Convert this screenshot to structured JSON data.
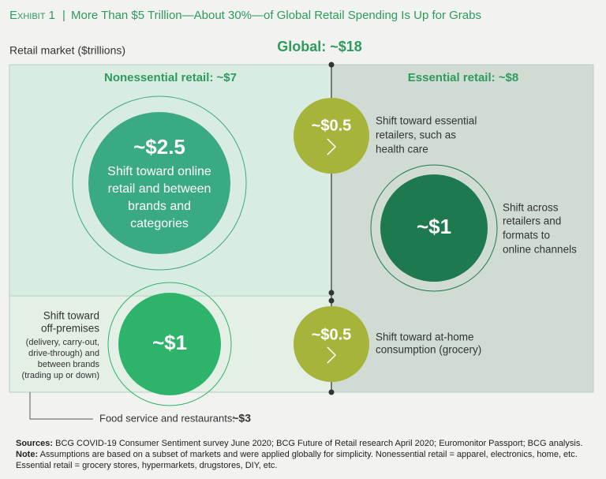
{
  "title": {
    "exhibit": "Exhibit 1",
    "separator": "|",
    "text": "More Than $5 Trillion—About 30%—of Global Retail Spending Is Up for Grabs"
  },
  "axis_label": "Retail market ($trillions)",
  "global": "Global: ~$18",
  "regions": {
    "nonessential": "Nonessential retail: ~$7",
    "essential": "Essential retail: ~$8",
    "food_service": {
      "label": "Food service and restaurants:",
      "value": "~$3"
    }
  },
  "bubbles": [
    {
      "value": "~$2.5",
      "lines": [
        "Shift toward online",
        "retail and between",
        "brands and",
        "categories"
      ]
    },
    {
      "value": "~$0.5",
      "lines": [
        "Shift toward essential",
        "retailers, such as",
        "health care"
      ]
    },
    {
      "value": "~$1",
      "lines": [
        "Shift across",
        "retailers and",
        "formats to",
        "online channels"
      ]
    },
    {
      "value": "~$1",
      "lines": [
        "Shift toward",
        "off-premises"
      ],
      "details": [
        "(delivery, carry-out,",
        "drive-through) and",
        "between brands",
        "(trading up or down)"
      ]
    },
    {
      "value": "~$0.5",
      "lines": [
        "Shift toward at-home",
        "consumption (grocery)"
      ]
    }
  ],
  "footnotes": {
    "sources_label": "Sources:",
    "sources": "BCG COVID-19 Consumer Sentiment survey June 2020; BCG Future of Retail research April 2020; Euromonitor Passport; BCG analysis.",
    "note_label": "Note:",
    "note": "Assumptions are based on a subset of markets and were applied globally for simplicity. Nonessential retail = apparel, electronics, home, etc. Essential retail = grocery stores, hypermarkets, drugstores, DIY, etc."
  }
}
